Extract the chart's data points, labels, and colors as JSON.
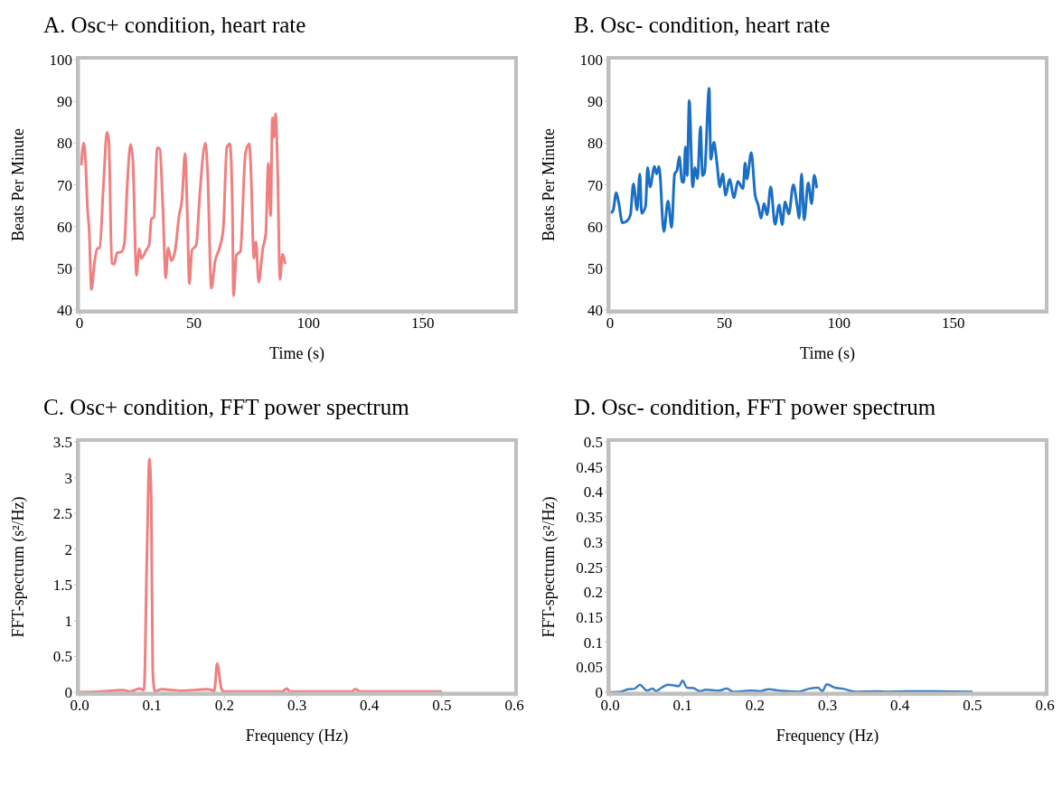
{
  "chart_data": [
    {
      "type": "line",
      "title": "A. Osc+ condition, heart rate",
      "xlabel": "Time (s)",
      "ylabel": "Beats Per Minute",
      "xlim": [
        0,
        190
      ],
      "xticks": [
        0,
        50,
        100,
        150
      ],
      "ylim": [
        40,
        100
      ],
      "yticks": [
        40,
        50,
        60,
        70,
        80,
        90,
        100
      ],
      "grid": false,
      "legend": false,
      "marker": "none",
      "series": [
        {
          "color": "#f08080",
          "x": [
            0.8,
            1.8,
            2.6,
            3.5,
            4.2,
            5.2,
            6.5,
            7.7,
            8.8,
            10.5,
            12.0,
            12.8,
            14.1,
            15.2,
            16.4,
            18.3,
            19.6,
            20.9,
            22.3,
            23.3,
            24.9,
            26.1,
            27.0,
            29.1,
            30.4,
            31.4,
            32.5,
            34.0,
            35.1,
            36.4,
            37.7,
            38.7,
            40.2,
            41.9,
            43.5,
            44.8,
            46.1,
            47.1,
            48.0,
            49.1,
            51.0,
            52.6,
            55.0,
            56.0,
            57.6,
            59.2,
            61.1,
            62.8,
            64.4,
            65.7,
            66.8,
            67.3,
            68.6,
            70.3,
            72.5,
            74.2,
            74.9,
            76.2,
            77.1,
            78.3,
            80.1,
            81.4,
            82.5,
            83.5,
            84.3,
            84.9,
            85.7,
            86.6,
            87.6,
            88.7,
            89.9
          ],
          "values": [
            74.7,
            80,
            75.9,
            64.1,
            59.4,
            44.9,
            51.2,
            54.7,
            54.9,
            70.4,
            82.6,
            80.6,
            51.2,
            51,
            53.7,
            53.9,
            55.9,
            70.4,
            79.7,
            75.9,
            48.3,
            54.7,
            52.4,
            54.3,
            55.5,
            61.8,
            62.2,
            78.9,
            78.6,
            64.9,
            47.7,
            54.9,
            51.8,
            54.7,
            62.6,
            66.5,
            77.5,
            63.3,
            46.3,
            54.3,
            55.5,
            68.1,
            80,
            72.8,
            45.2,
            51.6,
            54.7,
            59.4,
            79,
            79.8,
            64.9,
            43.4,
            53.2,
            54,
            77.5,
            79.8,
            73.5,
            52.4,
            56.3,
            46.7,
            54.7,
            58.3,
            75.1,
            62.6,
            86.1,
            81.4,
            87,
            72.8,
            47.3,
            53.3,
            51
          ]
        }
      ]
    },
    {
      "type": "line",
      "title": "B. Osc- condition, heart rate",
      "xlabel": "Time (s)",
      "ylabel": "Beats Per Minute",
      "xlim": [
        0,
        190
      ],
      "xticks": [
        0,
        50,
        100,
        150
      ],
      "ylim": [
        40,
        100
      ],
      "yticks": [
        40,
        50,
        60,
        70,
        80,
        90,
        100
      ],
      "grid": false,
      "legend": false,
      "marker": "none",
      "series": [
        {
          "color": "#1a6fc4",
          "x": [
            0.4,
            1.4,
            2.7,
            3.7,
            5.4,
            7.6,
            8.9,
            10.2,
            11.8,
            13.0,
            13.8,
            15.5,
            16.4,
            17.5,
            19.4,
            20.3,
            21.4,
            23.5,
            25.3,
            26.9,
            28.2,
            29.2,
            30.3,
            31.4,
            32.2,
            32.9,
            33.7,
            34.6,
            36.1,
            37.1,
            38.2,
            39.5,
            40.4,
            41.3,
            43.3,
            44.0,
            45.4,
            46.6,
            48.0,
            49.2,
            50.5,
            52.2,
            54.2,
            55.8,
            58.1,
            59.0,
            59.8,
            61.7,
            63.4,
            64.7,
            66.0,
            67.3,
            68.6,
            70.2,
            72.1,
            73.9,
            75.2,
            76.5,
            78.1,
            80.1,
            81.8,
            82.6,
            83.7,
            84.8,
            86.6,
            88.1,
            89.2,
            90.3
          ],
          "values": [
            63.2,
            64,
            68.1,
            65.9,
            60.9,
            61.4,
            62.8,
            70.2,
            64,
            72.6,
            63.2,
            64.9,
            74.1,
            69.5,
            74.4,
            72.6,
            74.4,
            58.8,
            66.1,
            59.8,
            72.6,
            73.4,
            76.7,
            70.8,
            70.6,
            79.1,
            72.2,
            90.2,
            69.5,
            74.1,
            71.4,
            83.9,
            72.2,
            73,
            93.1,
            76.1,
            80.2,
            75.7,
            69.5,
            72.6,
            67.5,
            71.3,
            66.9,
            70.8,
            69.1,
            75.2,
            71.4,
            77.7,
            67.5,
            65.2,
            62,
            65.5,
            62.8,
            69.5,
            60.5,
            65.2,
            60.5,
            65.9,
            63,
            70,
            64.8,
            62,
            72.6,
            61.6,
            70.5,
            65.5,
            72.3,
            69.2
          ]
        }
      ]
    },
    {
      "type": "line",
      "title": "C. Osc+ condition, FFT power spectrum",
      "xlabel": "Frequency (Hz)",
      "ylabel": "FFT-spectrum (s²/Hz)",
      "xlim": [
        0,
        0.6
      ],
      "xticks": [
        {
          "value": 0,
          "label": "0.0"
        },
        0.1,
        0.2,
        0.3,
        0.4,
        0.5,
        0.6
      ],
      "ylim": [
        0,
        3.5
      ],
      "yticks": [
        0,
        0.5,
        1,
        1.5,
        2,
        2.5,
        3,
        3.5
      ],
      "grid": false,
      "legend": false,
      "marker": "none",
      "series": [
        {
          "color": "#f08080",
          "x": [
            0,
            0.03,
            0.059,
            0.07,
            0.083,
            0.089,
            0.093,
            0.0964,
            0.099,
            0.101,
            0.104,
            0.113,
            0.141,
            0.177,
            0.186,
            0.19,
            0.196,
            0.2,
            0.28,
            0.286,
            0.29,
            0.375,
            0.381,
            0.387,
            0.5
          ],
          "values": [
            0,
            0.01,
            0.03,
            0.01,
            0.05,
            0.03,
            1.9,
            3.26,
            2.68,
            0.31,
            0.01,
            0.04,
            0.02,
            0.04,
            0.02,
            0.4,
            0.04,
            0.01,
            0.01,
            0.05,
            0.01,
            0.01,
            0.04,
            0.01,
            0.01
          ]
        }
      ]
    },
    {
      "type": "line",
      "title": "D. Osc- condition, FFT power spectrum",
      "xlabel": "Frequency (Hz)",
      "ylabel": "FFT-spectrum (s²/Hz)",
      "xlim": [
        0,
        0.6
      ],
      "xticks": [
        {
          "value": 0,
          "label": "0.0"
        },
        0.1,
        0.2,
        0.3,
        0.4,
        0.5,
        0.6
      ],
      "ylim": [
        0,
        0.5
      ],
      "yticks": [
        0,
        0.05,
        0.1,
        0.15,
        0.2,
        0.25,
        0.3,
        0.35,
        0.4,
        0.45,
        0.5
      ],
      "grid": false,
      "legend": false,
      "marker": "none",
      "series": [
        {
          "color": "#3d7fc0",
          "x": [
            0,
            0.014,
            0.025,
            0.034,
            0.041,
            0.051,
            0.059,
            0.063,
            0.071,
            0.08,
            0.095,
            0.1,
            0.106,
            0.115,
            0.124,
            0.132,
            0.15,
            0.161,
            0.17,
            0.194,
            0.207,
            0.219,
            0.233,
            0.26,
            0.275,
            0.287,
            0.293,
            0.299,
            0.31,
            0.321,
            0.338,
            0.369,
            0.382,
            0.409,
            0.45,
            0.5
          ],
          "values": [
            0,
            0.001,
            0.006,
            0.007,
            0.015,
            0.003,
            0.007,
            0.002,
            0.009,
            0.015,
            0.012,
            0.023,
            0.009,
            0.008,
            0.002,
            0.005,
            0.003,
            0.007,
            0.001,
            0.003,
            0.002,
            0.006,
            0.003,
            0.001,
            0.007,
            0.009,
            0.002,
            0.016,
            0.009,
            0.007,
            0.001,
            0.002,
            0.001,
            0.002,
            0.002,
            0.001
          ]
        }
      ]
    }
  ]
}
